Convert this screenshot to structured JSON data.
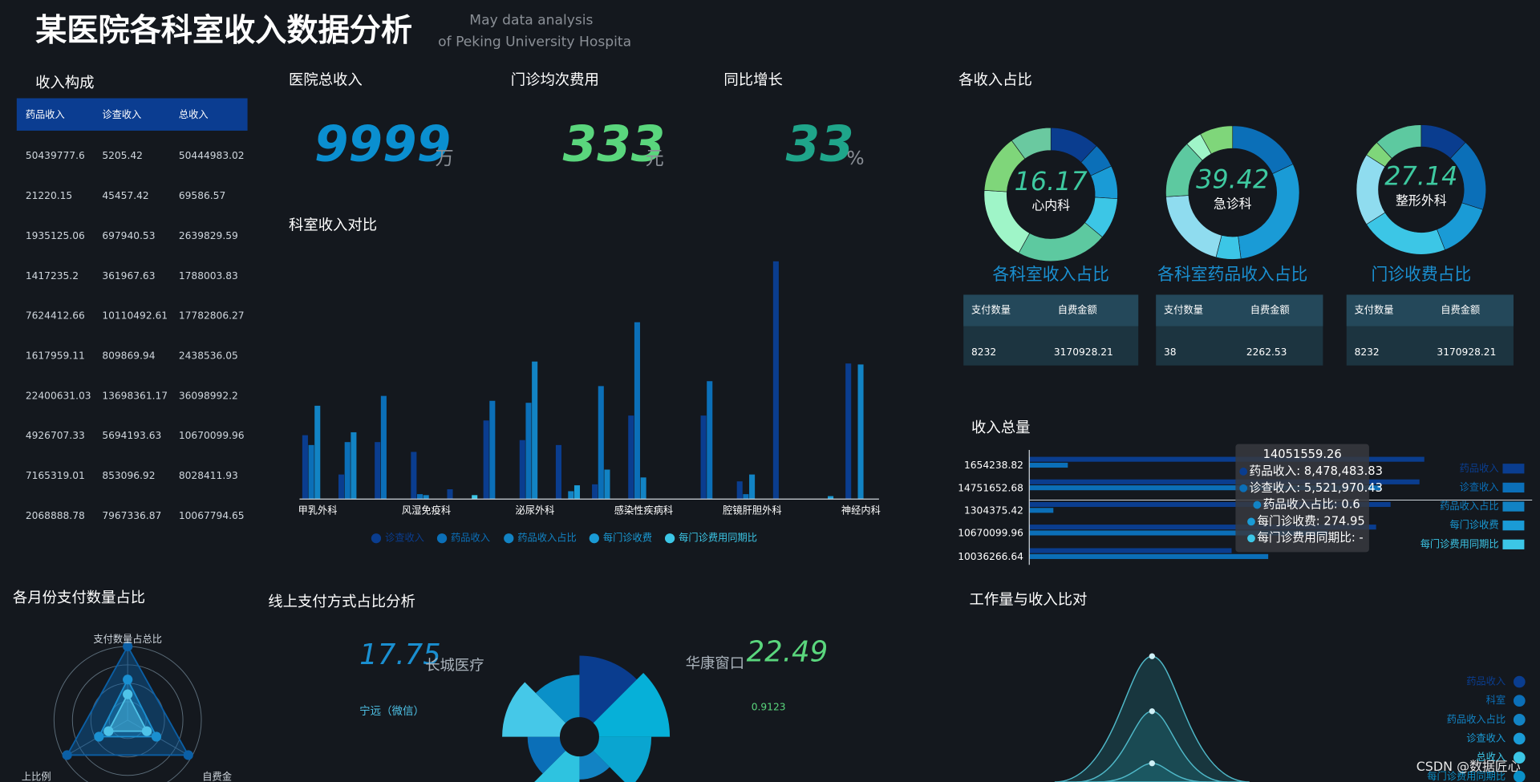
{
  "header": {
    "title": "某医院各科室收入数据分析",
    "subtitle": [
      "May data analysis",
      "of Peking University Hospita"
    ]
  },
  "income_table": {
    "title": "收入构成",
    "columns": [
      "药品收入",
      "诊查收入",
      "总收入"
    ],
    "rows": [
      [
        50439777.6,
        5205.42,
        50444983.02
      ],
      [
        21220.15,
        45457.42,
        69586.57
      ],
      [
        1935125.06,
        697940.53,
        2639829.59
      ],
      [
        1417235.2,
        361967.63,
        1788003.83
      ],
      [
        7624412.66,
        10110492.61,
        17782806.27
      ],
      [
        1617959.11,
        809869.94,
        2438536.05
      ],
      [
        22400631.03,
        13698361.17,
        36098992.2
      ],
      [
        4926707.33,
        5694193.63,
        10670099.96
      ],
      [
        7165319.01,
        853096.92,
        8028411.93
      ],
      [
        2068888.78,
        7967336.87,
        10067794.65
      ]
    ]
  },
  "kpis": [
    {
      "label": "医院总收入",
      "value": 9999,
      "unit": "万",
      "color": "#0a8fd0"
    },
    {
      "label": "门诊均次费用",
      "value": 333,
      "unit": "元",
      "color": "#5ad67d"
    },
    {
      "label": "同比增长",
      "value": 33,
      "unit": "%",
      "color": "#1fa58a"
    }
  ],
  "shares": {
    "title": "各收入占比",
    "items": [
      {
        "value": 16.17,
        "label": "心内科",
        "caption": "各科室收入占比",
        "segments": [
          12,
          6,
          8,
          10,
          22,
          18,
          14,
          10
        ],
        "colors": [
          "#0a3d8f",
          "#0b6fb8",
          "#1a9bd6",
          "#3cc6e6",
          "#5dc9a0",
          "#9ff5c8",
          "#7fd67a",
          "#6ac9a0"
        ],
        "table": {
          "columns": [
            "支付数量",
            "自费金额"
          ],
          "row": [
            8232,
            3170928.21
          ]
        }
      },
      {
        "value": 39.42,
        "label": "急诊科",
        "caption": "各科室药品收入占比",
        "segments": [
          18,
          30,
          6,
          20,
          14,
          4,
          8
        ],
        "colors": [
          "#0b6fb8",
          "#1a9bd6",
          "#3cc6e6",
          "#8fdcef",
          "#5dc9a0",
          "#9ff5c8",
          "#7fd67a"
        ],
        "table": {
          "columns": [
            "支付数量",
            "自费金额"
          ],
          "row": [
            38,
            2262.53
          ]
        }
      },
      {
        "value": 27.14,
        "label": "整形外科",
        "caption": "门诊收费占比",
        "segments": [
          12,
          18,
          14,
          22,
          18,
          4,
          12
        ],
        "colors": [
          "#0a3d8f",
          "#0b6fb8",
          "#1a9bd6",
          "#3cc6e6",
          "#8fdcef",
          "#7fd67a",
          "#5dc9a0"
        ],
        "table": {
          "columns": [
            "支付数量",
            "自费金额"
          ],
          "row": [
            8232,
            3170928.21
          ]
        }
      }
    ]
  },
  "dept_chart": {
    "type": "bar",
    "title": "科室收入对比",
    "categories": [
      "甲乳外科",
      null,
      null,
      "风湿免疫科",
      null,
      null,
      "泌尿外科",
      null,
      null,
      "感染性疾病科",
      null,
      null,
      "腔镜肝胆外科",
      null,
      null,
      "神经内科"
    ],
    "series": [
      {
        "name": "诊查收入",
        "color": "#0a3d8f",
        "values": [
          65,
          25,
          58,
          48,
          10,
          80,
          60,
          55,
          15,
          85,
          0,
          85,
          18,
          242,
          0,
          138
        ]
      },
      {
        "name": "药品收入",
        "color": "#0b6fb8",
        "values": [
          55,
          58,
          105,
          5,
          0,
          100,
          98,
          0,
          115,
          180,
          0,
          120,
          5,
          0,
          0,
          0
        ]
      },
      {
        "name": "药品收入占比",
        "color": "#1283c4",
        "values": [
          95,
          68,
          0,
          4,
          0,
          0,
          140,
          8,
          30,
          22,
          0,
          0,
          25,
          0,
          0,
          137
        ]
      },
      {
        "name": "每门诊收费",
        "color": "#1a9bd6",
        "values": [
          0,
          0,
          0,
          0,
          0,
          0,
          0,
          14,
          0,
          0,
          0,
          0,
          0,
          0,
          3,
          0
        ]
      },
      {
        "name": "每门诊费用同期比",
        "color": "#3cc6e6",
        "values": [
          0,
          0,
          0,
          0,
          4,
          0,
          0,
          0,
          0,
          0,
          0,
          0,
          0,
          0,
          0,
          0
        ]
      }
    ],
    "ylim": [
      0,
      250
    ]
  },
  "total_chart": {
    "type": "hbar",
    "title": "收入总量",
    "categories": [
      "1654238.82",
      "14751652.68",
      "1304375.42",
      "10670099.96",
      "10036266.64"
    ],
    "series": [
      {
        "name": "药品收入",
        "color": "#0a3d8f",
        "values": [
          410,
          405,
          375,
          360,
          210
        ]
      },
      {
        "name": "诊查收入",
        "color": "#0b6fb8",
        "values": [
          40,
          365,
          25,
          310,
          248
        ]
      },
      {
        "name": "药品收入占比",
        "color": "#1283c4",
        "values": [
          null,
          null,
          null,
          null,
          null
        ]
      },
      {
        "name": "每门诊收费",
        "color": "#1a9bd6",
        "values": [
          null,
          null,
          null,
          null,
          null
        ]
      },
      {
        "name": "每门诊费用同期比",
        "color": "#3cc6e6",
        "values": [
          null,
          null,
          null,
          null,
          null
        ]
      }
    ],
    "xlim": [
      0,
      420
    ],
    "tooltip": {
      "title": "14051559.26",
      "lines": [
        "药品收入: 8,478,483.83",
        "诊查收入: 5,521,970.43",
        "药品收入占比: 0.6",
        "每门诊收费: 274.95",
        "每门诊费用同期比: -"
      ]
    }
  },
  "radar": {
    "title": "各月份支付数量占比",
    "indicators": [
      "支付数量占总比",
      "上比例",
      "自费金"
    ],
    "rlim": [
      0,
      100
    ],
    "series": [
      {
        "color": "#0b5fa5",
        "values": [
          100,
          95,
          95
        ]
      },
      {
        "color": "#1a8fd0",
        "values": [
          55,
          45,
          45
        ]
      },
      {
        "color": "#4fc3e8",
        "values": [
          35,
          30,
          30
        ]
      }
    ]
  },
  "online_pay": {
    "title": "线上支付方式占比分析",
    "left": {
      "value": 17.75,
      "label": "长城医疗"
    },
    "right": {
      "label": "华康窗口",
      "value": 22.49,
      "note": "0.9123"
    },
    "list": [
      "宁远（微信）"
    ],
    "rose": {
      "values": [
        80,
        92,
        68,
        30,
        60,
        42,
        75,
        55
      ],
      "colors": [
        "#0a3d8f",
        "#06b0d8",
        "#0aa5d0",
        "#1283c4",
        "#2ec3e0",
        "#0b6fb8",
        "#45c8e8",
        "#0a90c8"
      ]
    }
  },
  "workload": {
    "title": "工作量与收入比对",
    "legend": [
      "药品收入",
      "科室",
      "药品收入占比",
      "诊查收入",
      "总收入",
      "每门诊费用同期比"
    ],
    "colors": [
      "#0a3d8f",
      "#0b6fb8",
      "#1283c4",
      "#1a9bd6",
      "#3cc6e6",
      "#0a90c8"
    ],
    "ylim": [
      0,
      140
    ],
    "peaks": [
      128,
      72,
      19
    ]
  },
  "watermark": "CSDN @数据匠心"
}
